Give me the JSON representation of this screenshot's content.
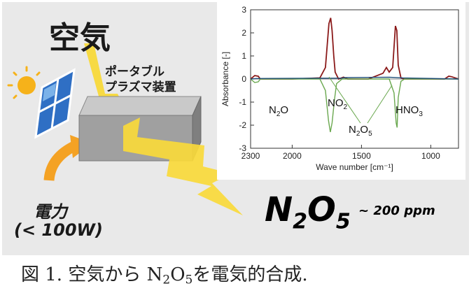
{
  "labels": {
    "air": "空気",
    "device_line1": "ポータブル",
    "device_line2": "プラズマ装置",
    "power": "電力",
    "power_limit": "(< 100W)",
    "product_main": "N",
    "product_sub1": "2",
    "product_mid": "O",
    "product_sub2": "5",
    "concentration": "~ 200 ppm"
  },
  "caption": {
    "prefix": "図 1. 空気から N",
    "sub1": "2",
    "mid": "O",
    "sub2": "5",
    "suffix": "を電気的合成."
  },
  "chart_data": {
    "type": "line",
    "xlabel": "Wave number [cm⁻¹]",
    "ylabel": "Absorbance [-]",
    "xlim": [
      2300,
      800
    ],
    "ylim": [
      -3,
      3
    ],
    "x_reversed": true,
    "x_ticks": [
      2300,
      2000,
      1500,
      1000
    ],
    "y_ticks": [
      3,
      2,
      1,
      0,
      -1,
      -2,
      -3
    ],
    "series": [
      {
        "color": "#8b1a1a",
        "x": [
          2300,
          2270,
          2245,
          2230,
          2200,
          2000,
          1800,
          1760,
          1735,
          1722,
          1712,
          1700,
          1690,
          1665,
          1630,
          1600,
          1450,
          1345,
          1320,
          1300,
          1275,
          1255,
          1245,
          1235,
          1215,
          1190,
          1100,
          900,
          870,
          850,
          800
        ],
        "values": [
          0,
          0.15,
          0.12,
          0,
          0,
          0,
          0.05,
          0.5,
          2.4,
          2.65,
          2.1,
          1.0,
          0.3,
          0,
          0.08,
          0,
          0,
          0.25,
          0.5,
          0.3,
          0.5,
          2.3,
          2.1,
          0.6,
          0.05,
          0,
          0,
          0,
          0.12,
          0.1,
          0
        ]
      },
      {
        "color": "#6aa84f",
        "x": [
          2300,
          2270,
          2245,
          2230,
          1800,
          1760,
          1738,
          1725,
          1712,
          1695,
          1680,
          1640,
          1600,
          1300,
          1265,
          1250,
          1243,
          1235,
          1215,
          1190,
          800
        ],
        "values": [
          0,
          -0.15,
          -0.12,
          0,
          0,
          -0.5,
          -1.8,
          -2.3,
          -1.9,
          -0.9,
          -0.2,
          0,
          0,
          0,
          -0.6,
          -1.9,
          -2.1,
          -0.8,
          -0.1,
          0,
          0
        ]
      },
      {
        "color": "#1f4e79",
        "x": [
          2300,
          2260,
          1640,
          1620,
          1300,
          1200,
          800
        ],
        "values": [
          0,
          0.02,
          0.04,
          0.06,
          0.08,
          0.05,
          0
        ]
      }
    ],
    "annotations": [
      {
        "text": "N",
        "sub": "2",
        "tail": "O"
      },
      {
        "text": "NO",
        "sub": "2",
        "tail": ""
      },
      {
        "text": "HNO",
        "sub": "3",
        "tail": ""
      },
      {
        "text": "N",
        "sub": "2",
        "tail": "O",
        "sub2": "5"
      }
    ]
  }
}
